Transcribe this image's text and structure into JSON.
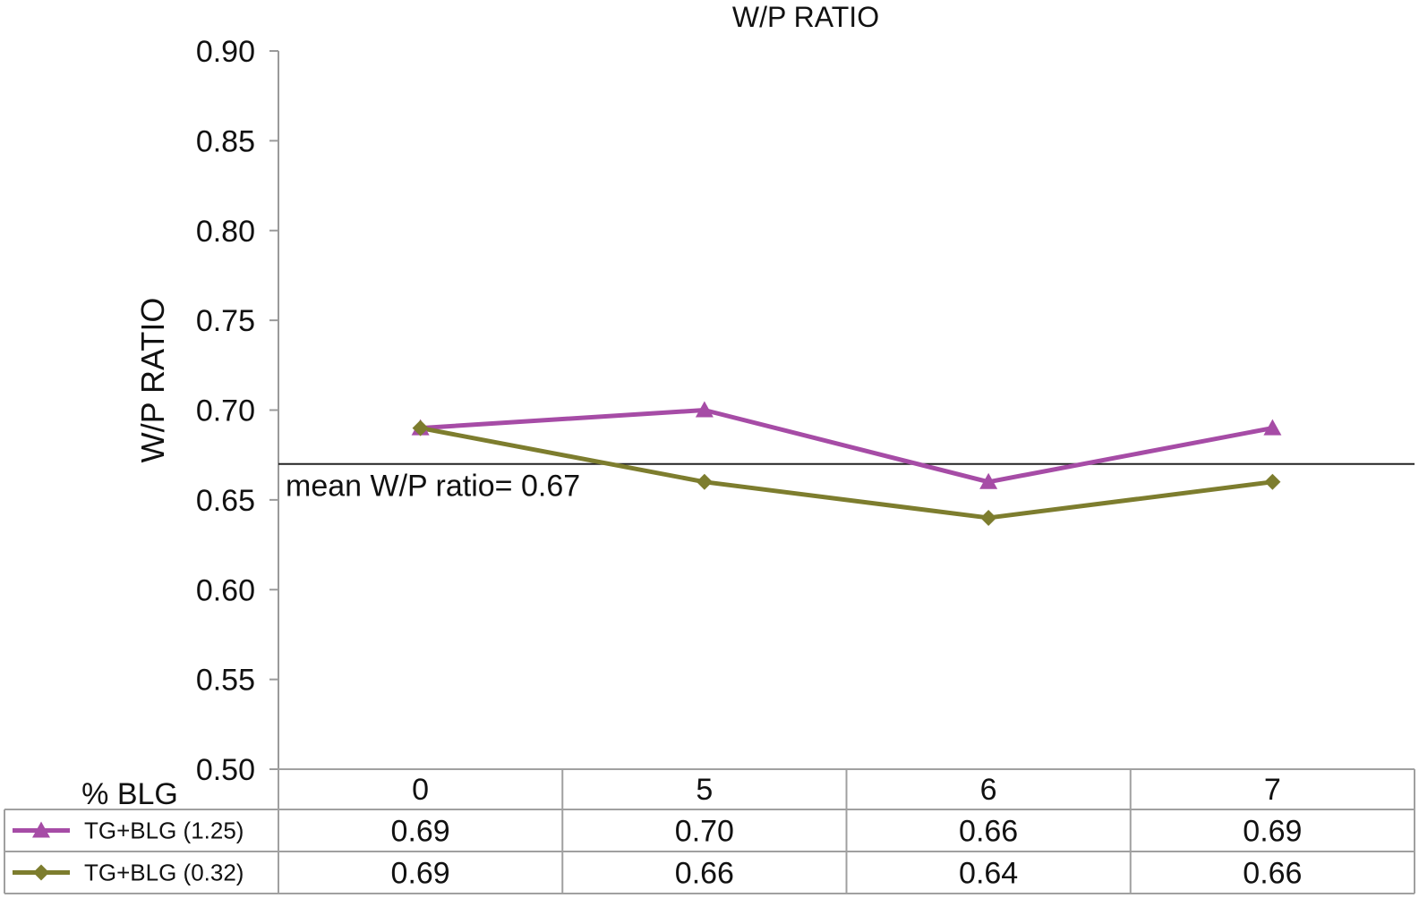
{
  "chart_data": {
    "type": "line",
    "title": "W/P RATIO",
    "ylabel": "W/P RATIO",
    "xlabel": "% BLG",
    "categories": [
      "0",
      "5",
      "6",
      "7"
    ],
    "ylim": [
      0.5,
      0.9
    ],
    "yticks": [
      "0.50",
      "0.55",
      "0.60",
      "0.65",
      "0.70",
      "0.75",
      "0.80",
      "0.85",
      "0.90"
    ],
    "grid": false,
    "legend_placement": "data table below plot",
    "series": [
      {
        "name": "TG+BLG (1.25)",
        "values": [
          0.69,
          0.7,
          0.66,
          0.69
        ],
        "labels": [
          "0.69",
          "0.70",
          "0.66",
          "0.69"
        ],
        "color": "#a64ca6",
        "marker": "triangle"
      },
      {
        "name": "TG+BLG (0.32)",
        "values": [
          0.69,
          0.66,
          0.64,
          0.66
        ],
        "labels": [
          "0.69",
          "0.66",
          "0.64",
          "0.66"
        ],
        "color": "#7d7d2e",
        "marker": "diamond"
      }
    ],
    "reference_line": {
      "value": 0.67,
      "label": "mean W/P ratio= 0.67",
      "color": "#222222"
    }
  }
}
